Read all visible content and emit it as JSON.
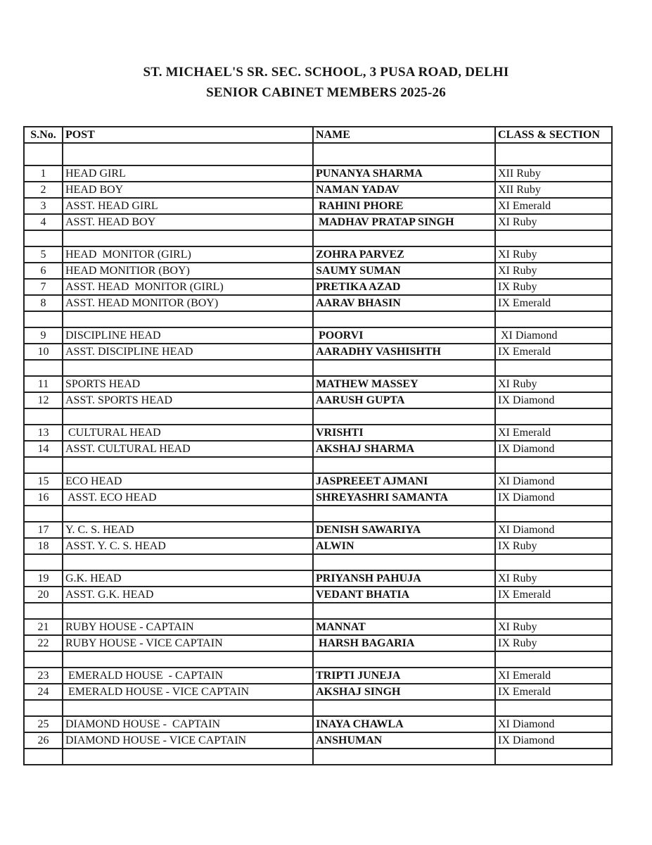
{
  "header": {
    "title_line1": "ST. MICHAEL'S SR. SEC. SCHOOL, 3 PUSA ROAD, DELHI",
    "title_line2": "SENIOR CABINET MEMBERS 2025-26"
  },
  "table": {
    "headers": {
      "sno": "S.No.",
      "post": "POST",
      "name": "NAME",
      "cls": "CLASS & SECTION"
    },
    "rows": [
      {
        "type": "spacer_tall",
        "sno": "",
        "post": "",
        "name": "",
        "cls": ""
      },
      {
        "type": "data",
        "sno": "1",
        "post": "HEAD GIRL",
        "name": "PUNANYA SHARMA",
        "cls": "XII Ruby"
      },
      {
        "type": "data",
        "sno": "2",
        "post": "HEAD BOY",
        "name": "NAMAN YADAV",
        "cls": "XII Ruby"
      },
      {
        "type": "data",
        "sno": "3",
        "post": "ASST. HEAD GIRL",
        "name": " RAHINI PHORE",
        "cls": "XI Emerald"
      },
      {
        "type": "data",
        "sno": "4",
        "post": "ASST. HEAD BOY",
        "name": " MADHAV PRATAP SINGH",
        "cls": "XI Ruby"
      },
      {
        "type": "spacer",
        "sno": "",
        "post": "",
        "name": "",
        "cls": ""
      },
      {
        "type": "data",
        "sno": "5",
        "post": "HEAD  MONITOR (GIRL)",
        "name": "ZOHRA PARVEZ",
        "cls": "XI Ruby"
      },
      {
        "type": "data",
        "sno": "6",
        "post": "HEAD MONITIOR (BOY)",
        "name": "SAUMY SUMAN",
        "cls": "XI Ruby"
      },
      {
        "type": "data",
        "sno": "7",
        "post": "ASST. HEAD  MONITOR (GIRL)",
        "name": "PRETIKA AZAD",
        "cls": "IX Ruby"
      },
      {
        "type": "data",
        "sno": "8",
        "post": "ASST. HEAD MONITOR (BOY)",
        "name": "AARAV BHASIN",
        "cls": "IX Emerald"
      },
      {
        "type": "spacer",
        "sno": "",
        "post": "",
        "name": "",
        "cls": ""
      },
      {
        "type": "data",
        "sno": "9",
        "post": "DISCIPLINE HEAD",
        "name": " POORVI",
        "cls": " XI Diamond"
      },
      {
        "type": "data",
        "sno": "10",
        "post": "ASST. DISCIPLINE HEAD",
        "name": "AARADHY VASHISHTH",
        "cls": "IX Emerald"
      },
      {
        "type": "spacer",
        "sno": "",
        "post": "",
        "name": "",
        "cls": ""
      },
      {
        "type": "data",
        "sno": "11",
        "post": "SPORTS HEAD",
        "name": "MATHEW MASSEY",
        "cls": "XI Ruby"
      },
      {
        "type": "data",
        "sno": "12",
        "post": "ASST. SPORTS HEAD",
        "name": "AARUSH GUPTA",
        "cls": "IX Diamond"
      },
      {
        "type": "spacer",
        "sno": "",
        "post": "",
        "name": "",
        "cls": ""
      },
      {
        "type": "data",
        "sno": "13",
        "post": " CULTURAL HEAD",
        "name": "VRISHTI",
        "cls": "XI Emerald"
      },
      {
        "type": "data",
        "sno": "14",
        "post": "ASST. CULTURAL HEAD",
        "name": "AKSHAJ SHARMA",
        "cls": "IX Diamond"
      },
      {
        "type": "spacer",
        "sno": "",
        "post": "",
        "name": "",
        "cls": ""
      },
      {
        "type": "data",
        "sno": "15",
        "post": "ECO HEAD",
        "name": "JASPREEET AJMANI",
        "cls": "XI Diamond"
      },
      {
        "type": "data",
        "sno": "16",
        "post": " ASST. ECO HEAD",
        "name": "SHREYASHRI SAMANTA",
        "cls": "IX Diamond"
      },
      {
        "type": "spacer",
        "sno": "",
        "post": "",
        "name": "",
        "cls": ""
      },
      {
        "type": "data",
        "sno": "17",
        "post": "Y. C. S. HEAD",
        "name": "DENISH SAWARIYA",
        "cls": "XI Diamond"
      },
      {
        "type": "data",
        "sno": "18",
        "post": "ASST. Y. C. S. HEAD",
        "name": "ALWIN",
        "cls": "IX Ruby"
      },
      {
        "type": "spacer",
        "sno": "",
        "post": "",
        "name": "",
        "cls": ""
      },
      {
        "type": "data",
        "sno": "19",
        "post": "G.K. HEAD",
        "name": "PRIYANSH PAHUJA",
        "cls": "XI Ruby"
      },
      {
        "type": "data",
        "sno": "20",
        "post": "ASST. G.K. HEAD",
        "name": "VEDANT BHATIA",
        "cls": "IX Emerald"
      },
      {
        "type": "spacer",
        "sno": "",
        "post": "",
        "name": "",
        "cls": ""
      },
      {
        "type": "data",
        "sno": "21",
        "post": "RUBY HOUSE - CAPTAIN",
        "name": "MANNAT",
        "cls": "XI Ruby"
      },
      {
        "type": "data",
        "sno": "22",
        "post": "RUBY HOUSE - VICE CAPTAIN",
        "name": " HARSH BAGARIA",
        "cls": "IX Ruby"
      },
      {
        "type": "spacer",
        "sno": "",
        "post": "",
        "name": "",
        "cls": ""
      },
      {
        "type": "data",
        "sno": "23",
        "post": " EMERALD HOUSE  - CAPTAIN",
        "name": "TRIPTI JUNEJA",
        "cls": "XI Emerald"
      },
      {
        "type": "data",
        "sno": "24",
        "post": " EMERALD HOUSE - VICE CAPTAIN",
        "name": "AKSHAJ SINGH",
        "cls": "IX Emerald"
      },
      {
        "type": "spacer",
        "sno": "",
        "post": "",
        "name": "",
        "cls": ""
      },
      {
        "type": "data",
        "sno": "25",
        "post": "DIAMOND HOUSE -  CAPTAIN",
        "name": "INAYA CHAWLA",
        "cls": "XI Diamond"
      },
      {
        "type": "data",
        "sno": "26",
        "post": "DIAMOND HOUSE - VICE CAPTAIN",
        "name": "ANSHUMAN",
        "cls": "IX Diamond"
      },
      {
        "type": "spacer",
        "sno": "",
        "post": "",
        "name": "",
        "cls": ""
      }
    ]
  }
}
